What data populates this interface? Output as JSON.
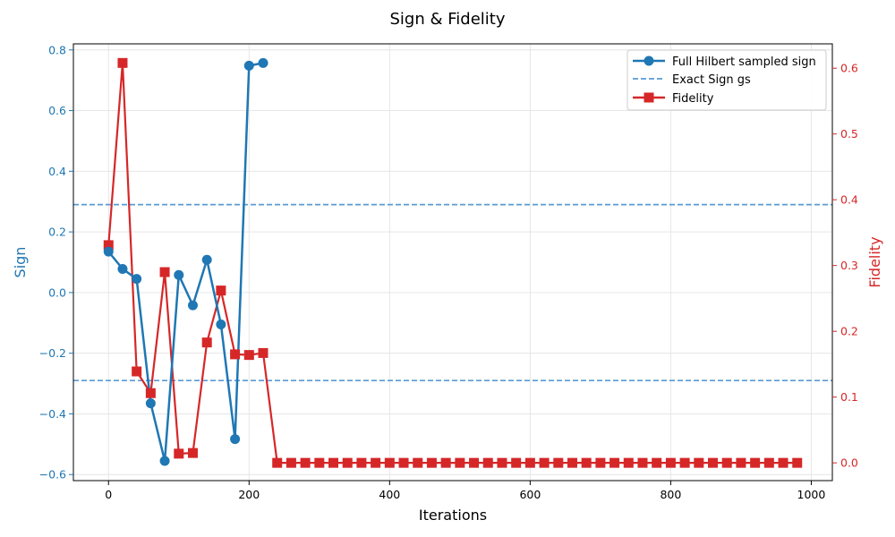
{
  "chart_data": {
    "type": "line",
    "title": "Sign & Fidelity",
    "xlabel": "Iterations",
    "ylabel_left": "Sign",
    "ylabel_right": "Fidelity",
    "xlim": [
      -50,
      1030
    ],
    "ylim_left": [
      -0.62,
      0.82
    ],
    "ylim_right": [
      -0.027,
      0.637
    ],
    "xticks": [
      "0",
      "200",
      "400",
      "600",
      "800",
      "1000"
    ],
    "yticks_left": [
      "−0.6",
      "−0.4",
      "−0.2",
      "0.0",
      "0.2",
      "0.4",
      "0.6",
      "0.8"
    ],
    "yticks_right": [
      "0.0",
      "0.1",
      "0.2",
      "0.3",
      "0.4",
      "0.5",
      "0.6"
    ],
    "grid": true,
    "legend_position": "top-right",
    "colors": {
      "sign": "#1f77b4",
      "fidelity": "#d62728",
      "exact": "#5a9bd5"
    },
    "series": [
      {
        "name": "Full Hilbert sampled sign",
        "axis": "left",
        "marker": "circle",
        "x": [
          0,
          20,
          40,
          60,
          80,
          100,
          120,
          140,
          160,
          180,
          200,
          220
        ],
        "values": [
          0.135,
          0.078,
          0.045,
          -0.365,
          -0.555,
          0.058,
          -0.042,
          0.108,
          -0.105,
          -0.483,
          0.748,
          0.757
        ]
      },
      {
        "name": "Exact Sign gs",
        "axis": "left",
        "style": "dashed",
        "hlines": [
          0.29,
          -0.29
        ]
      },
      {
        "name": "Fidelity",
        "axis": "right",
        "marker": "square",
        "x": [
          0,
          20,
          40,
          60,
          80,
          100,
          120,
          140,
          160,
          180,
          200,
          220,
          240,
          260,
          280,
          300,
          320,
          340,
          360,
          380,
          400,
          420,
          440,
          460,
          480,
          500,
          520,
          540,
          560,
          580,
          600,
          620,
          640,
          660,
          680,
          700,
          720,
          740,
          760,
          780,
          800,
          820,
          840,
          860,
          880,
          900,
          920,
          940,
          960,
          980
        ],
        "values": [
          0.331,
          0.608,
          0.139,
          0.106,
          0.29,
          0.014,
          0.015,
          0.183,
          0.262,
          0.165,
          0.164,
          0.167,
          0.0,
          0.0,
          0.0,
          0.0,
          0.0,
          0.0,
          0.0,
          0.0,
          0.0,
          0.0,
          0.0,
          0.0,
          0.0,
          0.0,
          0.0,
          0.0,
          0.0,
          0.0,
          0.0,
          0.0,
          0.0,
          0.0,
          0.0,
          0.0,
          0.0,
          0.0,
          0.0,
          0.0,
          0.0,
          0.0,
          0.0,
          0.0,
          0.0,
          0.0,
          0.0,
          0.0,
          0.0,
          0.0
        ]
      }
    ]
  }
}
